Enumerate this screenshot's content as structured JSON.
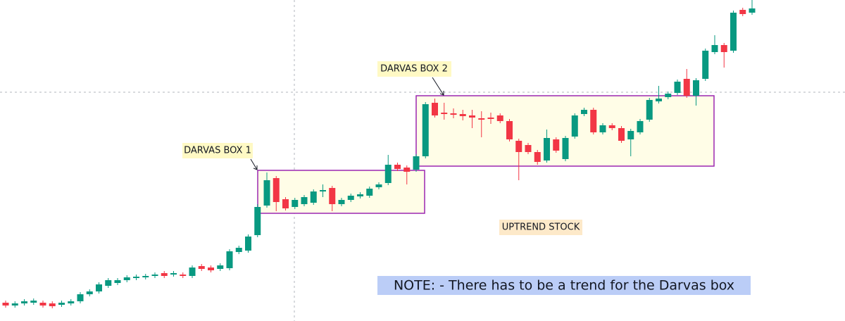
{
  "chart_data": {
    "type": "candlestick",
    "annotations": {
      "box1": "DARVAS BOX 1",
      "box2": "DARVAS BOX 2",
      "trend": "UPTREND STOCK",
      "note": "NOTE: - There has to be a trend for the Darvas box"
    },
    "up_color": "#089981",
    "down_color": "#f23645",
    "ylim": [
      0,
      456
    ],
    "open": [
      26,
      22,
      25,
      26,
      26,
      25,
      23,
      25,
      28,
      38,
      42,
      50,
      54,
      58,
      61,
      62,
      64,
      68,
      66,
      66,
      64,
      78,
      76,
      74,
      75,
      98,
      100,
      122,
      164,
      203,
      173,
      162,
      166,
      168,
      184,
      189,
      166,
      172,
      177,
      178,
      190,
      196,
      222,
      218,
      215,
      234,
      310,
      296,
      295,
      294,
      292,
      288,
      289,
      292,
      284,
      256,
      250,
      240,
      228,
      258,
      230,
      262,
      294,
      300,
      268,
      278,
      274,
      258,
      268,
      286,
      312,
      318,
      324,
      344,
      320,
      344,
      382,
      392,
      384,
      442,
      438
    ],
    "high": [
      29,
      28,
      31,
      32,
      29,
      28,
      29,
      31,
      41,
      45,
      55,
      61,
      61,
      65,
      66,
      67,
      69,
      71,
      71,
      69,
      79,
      81,
      79,
      82,
      102,
      107,
      123,
      166,
      211,
      206,
      176,
      175,
      179,
      187,
      194,
      192,
      175,
      181,
      183,
      191,
      197,
      236,
      225,
      221,
      237,
      311,
      316,
      310,
      302,
      300,
      300,
      298,
      296,
      295,
      287,
      259,
      253,
      243,
      272,
      261,
      263,
      295,
      303,
      303,
      281,
      281,
      277,
      273,
      287,
      317,
      334,
      326,
      343,
      358,
      345,
      387,
      406,
      395,
      441,
      445,
      456
    ],
    "low": [
      19,
      19,
      22,
      23,
      19,
      18,
      20,
      22,
      25,
      35,
      39,
      47,
      51,
      55,
      58,
      59,
      61,
      61,
      63,
      61,
      61,
      71,
      69,
      71,
      72,
      95,
      97,
      119,
      161,
      156,
      157,
      159,
      163,
      165,
      176,
      156,
      163,
      169,
      174,
      175,
      187,
      193,
      213,
      194,
      212,
      231,
      289,
      286,
      288,
      285,
      274,
      261,
      280,
      281,
      255,
      200,
      237,
      222,
      225,
      239,
      227,
      259,
      291,
      265,
      265,
      271,
      253,
      234,
      265,
      283,
      309,
      315,
      321,
      317,
      306,
      341,
      379,
      360,
      381,
      433,
      435
    ],
    "close": [
      22,
      25,
      28,
      29,
      22,
      21,
      26,
      28,
      38,
      42,
      52,
      58,
      58,
      62,
      63,
      64,
      66,
      64,
      68,
      64,
      76,
      74,
      72,
      79,
      99,
      104,
      120,
      162,
      200,
      169,
      160,
      172,
      176,
      184,
      186,
      166,
      172,
      178,
      180,
      188,
      194,
      222,
      216,
      212,
      234,
      308,
      292,
      294,
      293,
      291,
      289,
      286,
      287,
      284,
      258,
      240,
      240,
      226,
      260,
      242,
      260,
      292,
      300,
      268,
      278,
      274,
      256,
      270,
      284,
      314,
      316,
      323,
      340,
      320,
      342,
      384,
      392,
      382,
      438,
      436,
      444
    ]
  }
}
